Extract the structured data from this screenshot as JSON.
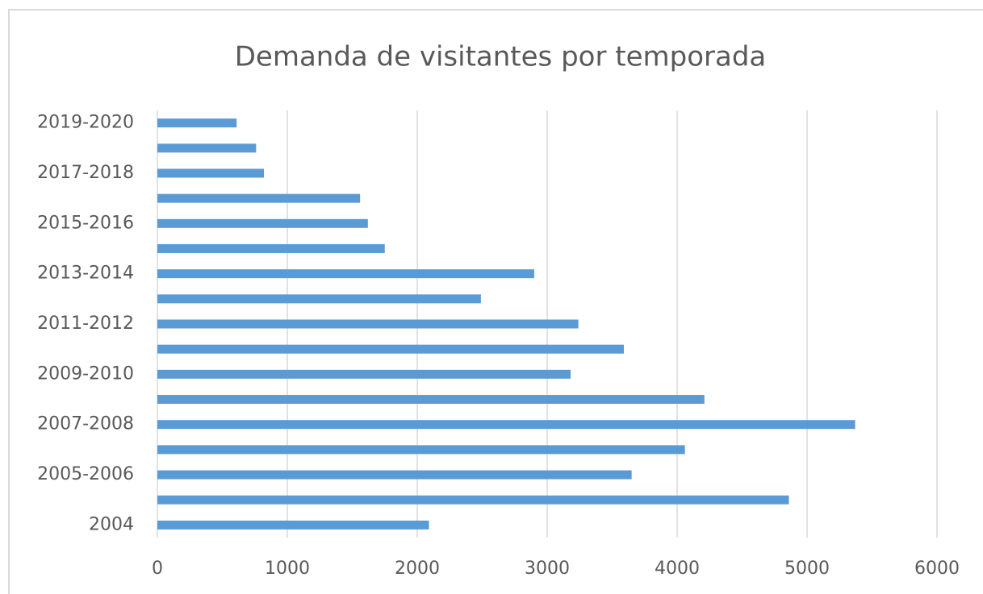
{
  "chart_data": {
    "type": "bar",
    "orientation": "horizontal",
    "title": "Demanda de visitantes por temporada",
    "categories": [
      "2004",
      null,
      "2005-2006",
      null,
      "2007-2008",
      null,
      "2009-2010",
      null,
      "2011-2012",
      null,
      "2013-2014",
      null,
      "2015-2016",
      null,
      "2017-2018",
      null,
      "2019-2020"
    ],
    "values": [
      2090,
      4860,
      3650,
      4060,
      5370,
      4210,
      3180,
      3590,
      3240,
      2490,
      2900,
      1750,
      1620,
      1560,
      820,
      760,
      610
    ],
    "color": "#5b9bd5",
    "xlim": [
      0,
      6000
    ],
    "xticks": [
      0,
      1000,
      2000,
      3000,
      4000,
      5000,
      6000
    ],
    "grid": true
  }
}
